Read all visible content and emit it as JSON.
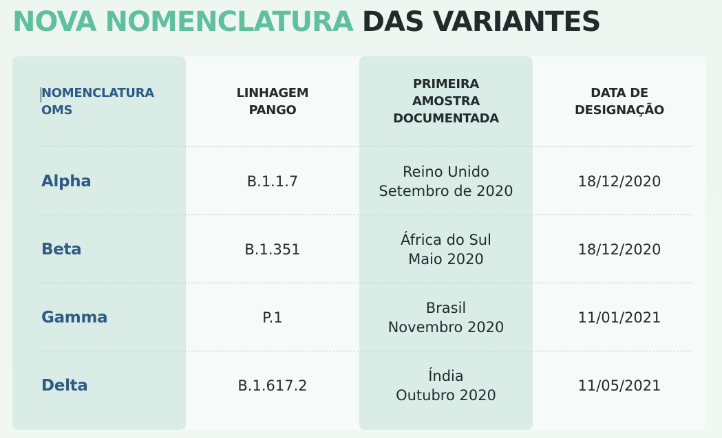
{
  "title": {
    "accent": "NOVA NOMENCLATURA",
    "rest": "DAS VARIANTES"
  },
  "colors": {
    "accent": "#5fbf9f",
    "name_blue": "#2f5a86",
    "dark": "#222a2a",
    "column_highlight": "#d9ece6"
  },
  "table": {
    "headers": [
      {
        "lines": [
          "NOMENCLATURA",
          "OMS"
        ]
      },
      {
        "lines": [
          "LINHAGEM",
          "PANGO"
        ]
      },
      {
        "lines": [
          "PRIMEIRA",
          "AMOSTRA",
          "DOCUMENTADA"
        ]
      },
      {
        "lines": [
          "DATA DE",
          "DESIGNAÇÃO"
        ]
      }
    ],
    "rows": [
      {
        "name": "Alpha",
        "lineage": "B.1.1.7",
        "sample": [
          "Reino Unido",
          "Setembro de 2020"
        ],
        "date": "18/12/2020"
      },
      {
        "name": "Beta",
        "lineage": "B.1.351",
        "sample": [
          "África do Sul",
          "Maio 2020"
        ],
        "date": "18/12/2020"
      },
      {
        "name": "Gamma",
        "lineage": "P.1",
        "sample": [
          "Brasil",
          "Novembro 2020"
        ],
        "date": "11/01/2021"
      },
      {
        "name": "Delta",
        "lineage": "B.1.617.2",
        "sample": [
          "Índia",
          "Outubro 2020"
        ],
        "date": "11/05/2021"
      }
    ]
  }
}
